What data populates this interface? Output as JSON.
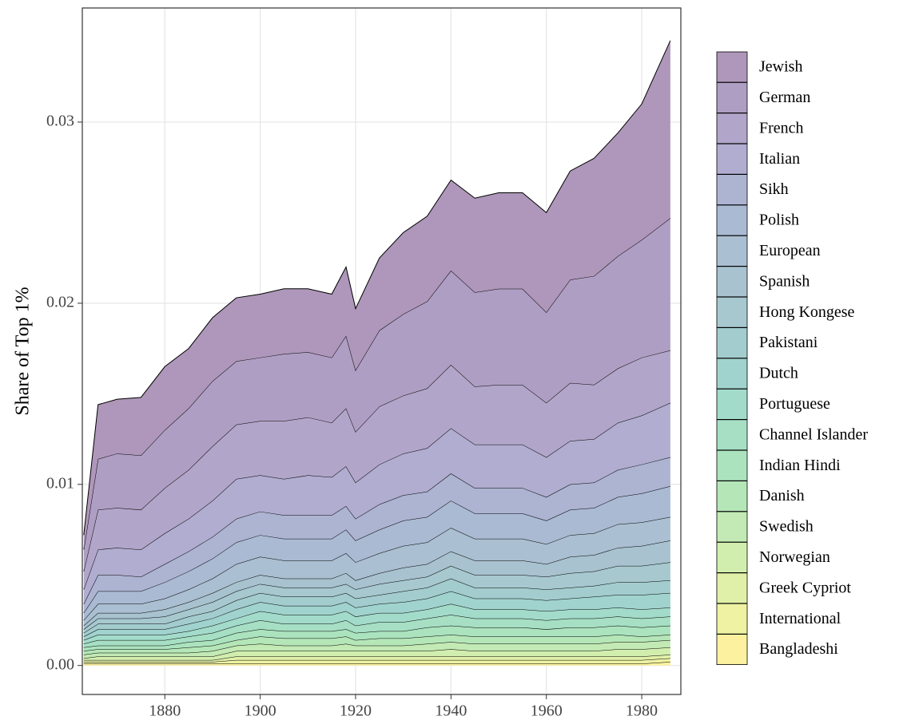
{
  "chart_data": {
    "type": "stacked_area",
    "y_label": "Share of Top 1%",
    "x": [
      1863,
      1866,
      1870,
      1875,
      1880,
      1885,
      1890,
      1895,
      1900,
      1905,
      1910,
      1915,
      1918,
      1920,
      1925,
      1930,
      1935,
      1940,
      1945,
      1950,
      1955,
      1960,
      1965,
      1970,
      1975,
      1980,
      1986
    ],
    "xlim": [
      1862.7,
      1988.2
    ],
    "xticks": [
      1880,
      1900,
      1920,
      1940,
      1960,
      1980
    ],
    "ylim": [
      -0.0016,
      0.0363
    ],
    "yticks": [
      {
        "value": 0,
        "label": "0.00"
      },
      0.01,
      0.02,
      0.03
    ],
    "grid": true,
    "legend": "right",
    "series": [
      {
        "name": "Jewish",
        "color": "#ae97ba",
        "values": [
          0.0008,
          0.003,
          0.003,
          0.0032,
          0.0035,
          0.0033,
          0.0035,
          0.0035,
          0.0035,
          0.0036,
          0.0035,
          0.0035,
          0.0038,
          0.0034,
          0.004,
          0.0045,
          0.0047,
          0.005,
          0.0052,
          0.0053,
          0.0053,
          0.0055,
          0.006,
          0.0065,
          0.0068,
          0.0075,
          0.0098
        ]
      },
      {
        "name": "German",
        "color": "#af9ec3",
        "values": [
          0.0012,
          0.0028,
          0.003,
          0.003,
          0.0032,
          0.0034,
          0.0036,
          0.0035,
          0.0035,
          0.0037,
          0.0036,
          0.0036,
          0.004,
          0.0034,
          0.0042,
          0.0045,
          0.0048,
          0.0052,
          0.0052,
          0.0053,
          0.0053,
          0.005,
          0.0057,
          0.006,
          0.0062,
          0.0065,
          0.0073
        ]
      },
      {
        "name": "French",
        "color": "#b1a6c9",
        "values": [
          0.001,
          0.0022,
          0.0022,
          0.0022,
          0.0025,
          0.0027,
          0.003,
          0.003,
          0.003,
          0.0032,
          0.0032,
          0.003,
          0.0032,
          0.0028,
          0.0032,
          0.0032,
          0.0033,
          0.0035,
          0.0032,
          0.0033,
          0.0033,
          0.003,
          0.0032,
          0.003,
          0.003,
          0.0032,
          0.0029
        ]
      },
      {
        "name": "Italian",
        "color": "#b0add0",
        "values": [
          0.0008,
          0.0014,
          0.0015,
          0.0015,
          0.0017,
          0.0018,
          0.002,
          0.0022,
          0.002,
          0.002,
          0.0022,
          0.0021,
          0.0022,
          0.002,
          0.0022,
          0.0023,
          0.0024,
          0.0025,
          0.0024,
          0.0024,
          0.0024,
          0.0022,
          0.0024,
          0.0024,
          0.0026,
          0.0027,
          0.003
        ]
      },
      {
        "name": "Sikh",
        "color": "#adb4d2",
        "values": [
          0.0005,
          0.0009,
          0.0009,
          0.0008,
          0.001,
          0.0011,
          0.0012,
          0.0013,
          0.0013,
          0.0013,
          0.0013,
          0.0013,
          0.0013,
          0.0012,
          0.0014,
          0.0014,
          0.0014,
          0.0015,
          0.0014,
          0.0014,
          0.0014,
          0.0013,
          0.0014,
          0.0014,
          0.0015,
          0.0016,
          0.0016
        ]
      },
      {
        "name": "Polish",
        "color": "#aabad3",
        "values": [
          0.0004,
          0.0007,
          0.0007,
          0.0007,
          0.0009,
          0.001,
          0.0011,
          0.0012,
          0.0012,
          0.0012,
          0.0012,
          0.0012,
          0.0013,
          0.0012,
          0.0013,
          0.0014,
          0.0014,
          0.0015,
          0.0014,
          0.0014,
          0.0014,
          0.0013,
          0.0014,
          0.0014,
          0.0015,
          0.0016,
          0.0017
        ]
      },
      {
        "name": "European",
        "color": "#aabfd1",
        "values": [
          0.0003,
          0.0005,
          0.0005,
          0.0005,
          0.0006,
          0.0007,
          0.0008,
          0.001,
          0.001,
          0.001,
          0.001,
          0.001,
          0.0011,
          0.001,
          0.0011,
          0.0012,
          0.0012,
          0.0013,
          0.0012,
          0.0012,
          0.0012,
          0.0011,
          0.0012,
          0.0012,
          0.0013,
          0.0013,
          0.0013
        ]
      },
      {
        "name": "Spanish",
        "color": "#a8c2cf",
        "values": [
          0.0002,
          0.0003,
          0.0003,
          0.0003,
          0.0004,
          0.0004,
          0.0005,
          0.0005,
          0.0005,
          0.0005,
          0.0005,
          0.0005,
          0.0006,
          0.0005,
          0.0006,
          0.0007,
          0.0007,
          0.0008,
          0.0008,
          0.0008,
          0.0008,
          0.0007,
          0.0009,
          0.0009,
          0.001,
          0.0011,
          0.0012
        ]
      },
      {
        "name": "Hong Kongese",
        "color": "#a7c8cf",
        "values": [
          0.0002,
          0.0003,
          0.0003,
          0.0003,
          0.0004,
          0.0004,
          0.0005,
          0.0005,
          0.0005,
          0.0005,
          0.0005,
          0.0005,
          0.0005,
          0.0005,
          0.0006,
          0.0006,
          0.0006,
          0.0007,
          0.0007,
          0.0007,
          0.0007,
          0.0007,
          0.0008,
          0.0008,
          0.0009,
          0.0009,
          0.001
        ]
      },
      {
        "name": "Pakistani",
        "color": "#a3ccce",
        "values": [
          0.0002,
          0.0003,
          0.0003,
          0.0003,
          0.0003,
          0.0004,
          0.0004,
          0.0005,
          0.0005,
          0.0005,
          0.0005,
          0.0005,
          0.0005,
          0.0005,
          0.0005,
          0.0006,
          0.0006,
          0.0007,
          0.0006,
          0.0006,
          0.0006,
          0.0006,
          0.0006,
          0.0006,
          0.0007,
          0.0007,
          0.0007
        ]
      },
      {
        "name": "Dutch",
        "color": "#a1d3ce",
        "values": [
          0.0002,
          0.0003,
          0.0003,
          0.0003,
          0.0003,
          0.0004,
          0.0004,
          0.0005,
          0.0005,
          0.0005,
          0.0005,
          0.0005,
          0.0005,
          0.0005,
          0.0005,
          0.0006,
          0.0006,
          0.0007,
          0.0006,
          0.0006,
          0.0006,
          0.0006,
          0.0006,
          0.0007,
          0.0007,
          0.0008,
          0.0008
        ]
      },
      {
        "name": "Portuguese",
        "color": "#a3dbca",
        "values": [
          0.0002,
          0.0003,
          0.0003,
          0.0003,
          0.0003,
          0.0003,
          0.0004,
          0.0004,
          0.0005,
          0.0005,
          0.0005,
          0.0005,
          0.0005,
          0.0005,
          0.0005,
          0.0005,
          0.0005,
          0.0006,
          0.0005,
          0.0005,
          0.0005,
          0.0005,
          0.0005,
          0.0005,
          0.0005,
          0.0005,
          0.0005
        ]
      },
      {
        "name": "Channel Islander",
        "color": "#a6dfc4",
        "values": [
          0.0002,
          0.0003,
          0.0003,
          0.0003,
          0.0003,
          0.0003,
          0.0004,
          0.0004,
          0.0005,
          0.0004,
          0.0004,
          0.0004,
          0.0005,
          0.0004,
          0.0005,
          0.0005,
          0.0005,
          0.0006,
          0.0005,
          0.0005,
          0.0005,
          0.0005,
          0.0005,
          0.0005,
          0.0005,
          0.0005,
          0.0005
        ]
      },
      {
        "name": "Indian Hindi",
        "color": "#abe3be",
        "values": [
          0.0002,
          0.0002,
          0.0002,
          0.0002,
          0.0002,
          0.0003,
          0.0003,
          0.0004,
          0.0004,
          0.0004,
          0.0004,
          0.0004,
          0.0004,
          0.0004,
          0.0004,
          0.0004,
          0.0005,
          0.0005,
          0.0005,
          0.0005,
          0.0005,
          0.0004,
          0.0005,
          0.0005,
          0.0005,
          0.0005,
          0.0005
        ]
      },
      {
        "name": "Danish",
        "color": "#b5e6b8",
        "values": [
          0.0002,
          0.0002,
          0.0002,
          0.0002,
          0.0002,
          0.0003,
          0.0003,
          0.0003,
          0.0004,
          0.0004,
          0.0004,
          0.0004,
          0.0004,
          0.0003,
          0.0004,
          0.0004,
          0.0004,
          0.0004,
          0.0004,
          0.0004,
          0.0004,
          0.0004,
          0.0004,
          0.0004,
          0.0004,
          0.0003,
          0.0003
        ]
      },
      {
        "name": "Swedish",
        "color": "#c3eab4",
        "values": [
          0.0002,
          0.0002,
          0.0002,
          0.0002,
          0.0002,
          0.0002,
          0.0003,
          0.0003,
          0.0004,
          0.0003,
          0.0003,
          0.0003,
          0.0004,
          0.0003,
          0.0003,
          0.0003,
          0.0004,
          0.0004,
          0.0004,
          0.0004,
          0.0004,
          0.0004,
          0.0004,
          0.0004,
          0.0004,
          0.0004,
          0.0004
        ]
      },
      {
        "name": "Norwegian",
        "color": "#d2eeae",
        "values": [
          0.0001,
          0.0002,
          0.0002,
          0.0002,
          0.0002,
          0.0002,
          0.0002,
          0.0003,
          0.0003,
          0.0003,
          0.0003,
          0.0003,
          0.0003,
          0.0003,
          0.0003,
          0.0003,
          0.0003,
          0.0004,
          0.0003,
          0.0003,
          0.0003,
          0.0003,
          0.0003,
          0.0003,
          0.0004,
          0.0004,
          0.0004
        ]
      },
      {
        "name": "Greek Cypriot",
        "color": "#e0f0a8",
        "values": [
          0.0001,
          0.0001,
          0.0001,
          0.0001,
          0.0001,
          0.0001,
          0.0001,
          0.0002,
          0.0002,
          0.0002,
          0.0002,
          0.0002,
          0.0002,
          0.0002,
          0.0002,
          0.0002,
          0.0002,
          0.0002,
          0.0002,
          0.0002,
          0.0002,
          0.0002,
          0.0002,
          0.0002,
          0.0002,
          0.0002,
          0.0002
        ]
      },
      {
        "name": "International",
        "color": "#eef2a2",
        "values": [
          0.0001,
          0.0001,
          0.0001,
          0.0001,
          0.0001,
          0.0001,
          0.0001,
          0.0002,
          0.0002,
          0.0002,
          0.0002,
          0.0002,
          0.0002,
          0.0002,
          0.0002,
          0.0002,
          0.0002,
          0.0002,
          0.0002,
          0.0002,
          0.0002,
          0.0002,
          0.0002,
          0.0002,
          0.0002,
          0.0002,
          0.0002
        ]
      },
      {
        "name": "Bangladeshi",
        "color": "#fbf19e",
        "values": [
          0.0001,
          0.0001,
          0.0001,
          0.0001,
          0.0001,
          0.0001,
          0.0001,
          0.0001,
          0.0001,
          0.0001,
          0.0001,
          0.0001,
          0.0001,
          0.0001,
          0.0001,
          0.0001,
          0.0001,
          0.0001,
          0.0001,
          0.0001,
          0.0001,
          0.0001,
          0.0001,
          0.0001,
          0.0001,
          0.0001,
          0.0002
        ]
      }
    ]
  }
}
